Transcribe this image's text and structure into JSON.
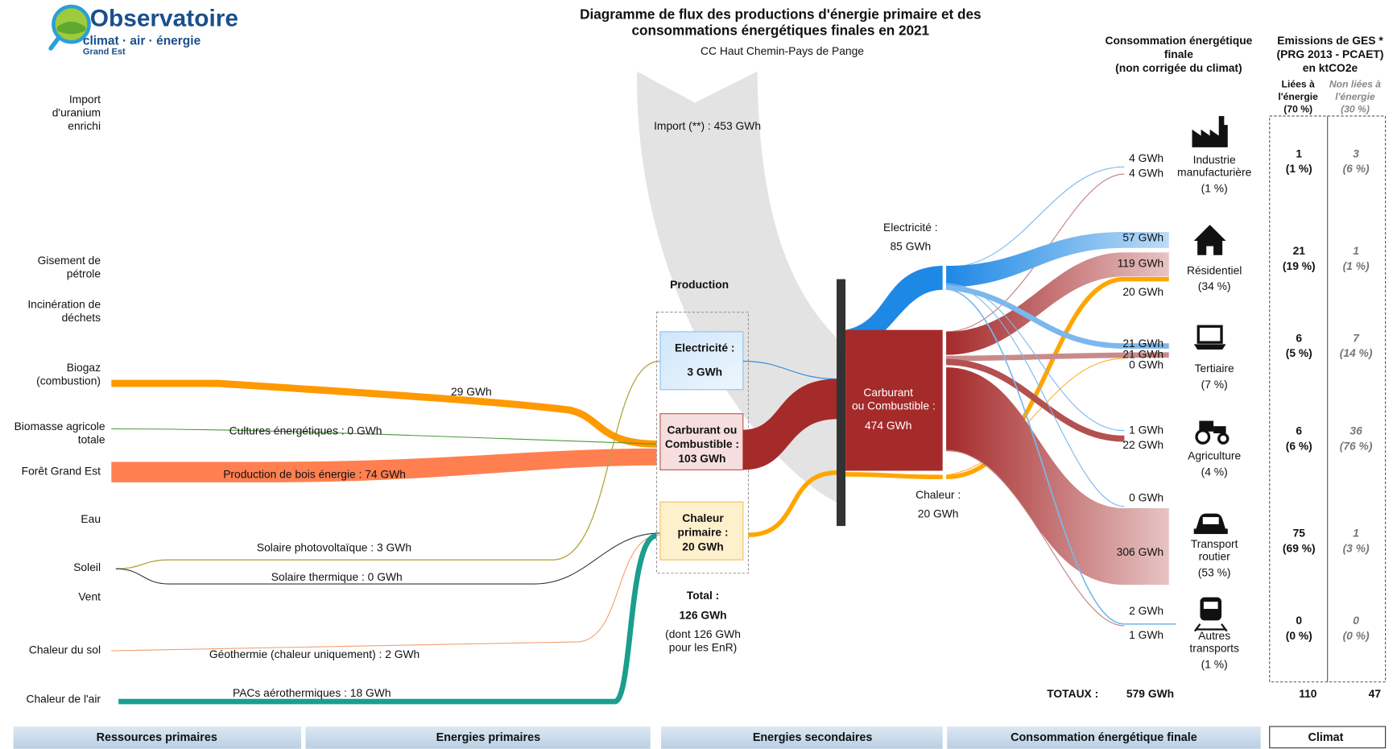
{
  "header": {
    "title": [
      "Diagramme de flux des productions d'énergie primaire et des",
      "consommations énergétiques finales en 2021"
    ],
    "subtitle": "CC Haut Chemin-Pays de Pange"
  },
  "logo": {
    "name": "Observatoire",
    "line2": "climat · air · énergie",
    "line3": "Grand Est"
  },
  "resources": [
    {
      "lines": [
        "Import",
        "d'uranium",
        "enrichi"
      ]
    },
    {
      "lines": [
        "Gisement de",
        "pétrole"
      ]
    },
    {
      "lines": [
        "Incinération de",
        "déchets"
      ]
    },
    {
      "lines": [
        "Biogaz",
        "(combustion)"
      ]
    },
    {
      "lines": [
        "Biomasse agricole",
        "totale"
      ]
    },
    {
      "lines": [
        "Forêt Grand Est"
      ]
    },
    {
      "lines": [
        "Eau"
      ]
    },
    {
      "lines": [
        "Soleil"
      ]
    },
    {
      "lines": [
        "Vent"
      ]
    },
    {
      "lines": [
        "Chaleur du sol"
      ]
    },
    {
      "lines": [
        "Chaleur de l'air"
      ]
    }
  ],
  "flow_labels": [
    "Import (**) :  453 GWh",
    "29 GWh",
    "Cultures énergétiques  :  0 GWh",
    "Production de bois énergie :  74 GWh",
    "Solaire photovoltaïque :  3 GWh",
    "Solaire thermique :  0 GWh",
    "Géothermie (chaleur uniquement) :  2 GWh",
    "PACs aérothermiques :  18 GWh"
  ],
  "production": {
    "title": "Production",
    "boxes": [
      {
        "lines": [
          "Electricité :",
          "3 GWh"
        ]
      },
      {
        "lines": [
          "Carburant ou",
          "Combustible :",
          "103 GWh"
        ]
      },
      {
        "lines": [
          "Chaleur",
          "primaire :",
          "20 GWh"
        ]
      }
    ],
    "total": [
      "Total :",
      "126 GWh",
      "(dont  126 GWh",
      "pour les EnR)"
    ]
  },
  "secondary": [
    {
      "lines": [
        "Electricité :",
        "85 GWh"
      ]
    },
    {
      "lines": [
        "Carburant",
        "ou Combustible :",
        "474 GWh"
      ]
    },
    {
      "lines": [
        "Chaleur :",
        "20 GWh"
      ]
    }
  ],
  "consumption_flows": [
    "4 GWh",
    "4 GWh",
    "57 GWh",
    "119 GWh",
    "20 GWh",
    "21 GWh",
    "21 GWh",
    "0 GWh",
    "1 GWh",
    "22 GWh",
    "0 GWh",
    "306 GWh",
    "2 GWh",
    "1 GWh"
  ],
  "consumption": {
    "header": [
      "Consommation énergétique",
      "finale",
      "(non corrigée du climat)"
    ],
    "sectors": [
      {
        "lines": [
          "Industrie",
          "manufacturière",
          "(1 %)"
        ]
      },
      {
        "lines": [
          "Résidentiel",
          "(34 %)"
        ]
      },
      {
        "lines": [
          "Tertiaire",
          "(7 %)"
        ]
      },
      {
        "lines": [
          "Agriculture",
          "(4 %)"
        ]
      },
      {
        "lines": [
          "Transport",
          "routier",
          "(53 %)"
        ]
      },
      {
        "lines": [
          "Autres",
          "transports",
          "(1 %)"
        ]
      }
    ]
  },
  "ghg": {
    "header": [
      "Emissions de GES *",
      "(PRG 2013 - PCAET)",
      "en ktCO2e"
    ],
    "energy_header": [
      "Liées à",
      "l'énergie",
      "(70 %)"
    ],
    "other_header": [
      "Non liées à",
      "l'énergie",
      "(30 %)"
    ],
    "energy": [
      [
        "1",
        "(1 %)"
      ],
      [
        "21",
        "(19 %)"
      ],
      [
        "6",
        "(5 %)"
      ],
      [
        "6",
        "(6 %)"
      ],
      [
        "75",
        "(69 %)"
      ],
      [
        "0",
        "(0 %)"
      ]
    ],
    "other": [
      [
        "3",
        "(6 %)"
      ],
      [
        "1",
        "(1 %)"
      ],
      [
        "7",
        "(14 %)"
      ],
      [
        "36",
        "(76 %)"
      ],
      [
        "1",
        "(3 %)"
      ],
      [
        "0",
        "(0 %)"
      ]
    ]
  },
  "totals": {
    "label": "TOTAUX :",
    "consumption": "579 GWh",
    "energy": "110",
    "other": "47"
  },
  "footer": [
    "Ressources primaires",
    "Energies primaires",
    "Energies secondaires",
    "Consommation énergétique finale",
    "Climat"
  ]
}
